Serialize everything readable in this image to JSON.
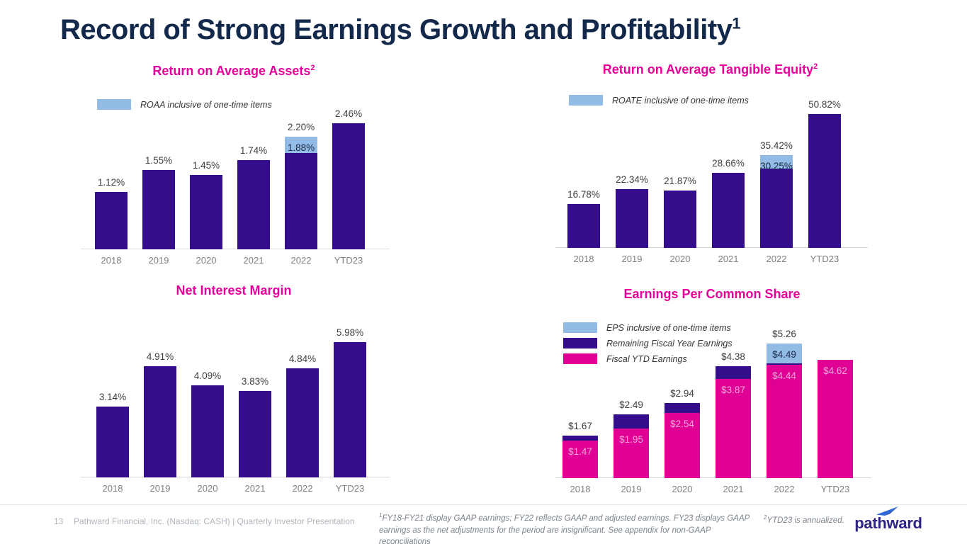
{
  "slide": {
    "title": "Record of Strong Earnings Growth and Profitability",
    "title_sup": "1"
  },
  "colors": {
    "navy": "#13294B",
    "title_magenta": "#E6009A",
    "bar_purple": "#330D8C",
    "bar_light_blue": "#92BBE5",
    "bar_magenta": "#E10096",
    "label_dark": "#3F3F3F",
    "label_navy": "#1C2B4A",
    "label_light_pink": "#F2A8D5",
    "axis_gray": "#D9D9D9",
    "tick_gray": "#7F7F7F",
    "footer_gray": "#AFB6BF",
    "footnote_gray": "#7A828C",
    "logo_indigo": "#2D2483",
    "logo_blue": "#2F6BD8"
  },
  "chart_data": [
    {
      "id": "roaa",
      "type": "bar",
      "title": "Return on Average Assets",
      "title_sup": "2",
      "unit": "%",
      "ylim": [
        0,
        2.56
      ],
      "grid": false,
      "legend_position": "top-left",
      "legend": [
        {
          "color": "#92BBE5",
          "label": "ROAA inclusive of one-time items"
        }
      ],
      "categories": [
        "2018",
        "2019",
        "2020",
        "2021",
        "2022",
        "YTD23"
      ],
      "series": [
        {
          "name": "ROAA",
          "color": "#330D8C",
          "values": [
            1.12,
            1.55,
            1.45,
            1.74,
            1.88,
            2.46
          ]
        },
        {
          "name": "One-time items uplift",
          "color": "#92BBE5",
          "values": [
            0,
            0,
            0,
            0,
            0.32,
            0
          ]
        }
      ],
      "labels": [
        {
          "bar": 0,
          "pos": "above",
          "text": "1.12%"
        },
        {
          "bar": 1,
          "pos": "above",
          "text": "1.55%"
        },
        {
          "bar": 2,
          "pos": "above",
          "text": "1.45%"
        },
        {
          "bar": 3,
          "pos": "above",
          "text": "1.74%"
        },
        {
          "bar": 4,
          "pos": "above",
          "text": "2.20%"
        },
        {
          "bar": 4,
          "pos": "inside",
          "seg": 1,
          "text": "1.88%",
          "color": "#1C2B4A"
        },
        {
          "bar": 5,
          "pos": "above",
          "text": "2.46%"
        }
      ]
    },
    {
      "id": "roate",
      "type": "bar",
      "title": "Return on Average Tangible Equity",
      "title_sup": "2",
      "unit": "%",
      "ylim": [
        0,
        51.2
      ],
      "grid": false,
      "legend_position": "top-left",
      "legend": [
        {
          "color": "#92BBE5",
          "label": "ROATE inclusive of one-time items"
        }
      ],
      "categories": [
        "2018",
        "2019",
        "2020",
        "2021",
        "2022",
        "YTD23"
      ],
      "series": [
        {
          "name": "ROATE",
          "color": "#330D8C",
          "values": [
            16.78,
            22.34,
            21.87,
            28.66,
            30.25,
            50.82
          ]
        },
        {
          "name": "One-time items uplift",
          "color": "#92BBE5",
          "values": [
            0,
            0,
            0,
            0,
            5.17,
            0
          ]
        }
      ],
      "labels": [
        {
          "bar": 0,
          "pos": "above",
          "text": "16.78%"
        },
        {
          "bar": 1,
          "pos": "above",
          "text": "22.34%"
        },
        {
          "bar": 2,
          "pos": "above",
          "text": "21.87%"
        },
        {
          "bar": 3,
          "pos": "above",
          "text": "28.66%"
        },
        {
          "bar": 4,
          "pos": "above",
          "text": "35.42%"
        },
        {
          "bar": 4,
          "pos": "inside",
          "seg": 1,
          "text": "30.25%",
          "color": "#1C2B4A"
        },
        {
          "bar": 5,
          "pos": "above",
          "text": "50.82%"
        }
      ]
    },
    {
      "id": "nim",
      "type": "bar",
      "title": "Net Interest Margin",
      "title_sup": "",
      "unit": "%",
      "ylim": [
        0,
        6.02
      ],
      "grid": false,
      "legend": [],
      "categories": [
        "2018",
        "2019",
        "2020",
        "2021",
        "2022",
        "YTD23"
      ],
      "series": [
        {
          "name": "Net Interest Margin",
          "color": "#330D8C",
          "values": [
            3.14,
            4.91,
            4.09,
            3.83,
            4.84,
            5.98
          ]
        }
      ],
      "labels": [
        {
          "bar": 0,
          "pos": "above",
          "text": "3.14%"
        },
        {
          "bar": 1,
          "pos": "above",
          "text": "4.91%"
        },
        {
          "bar": 2,
          "pos": "above",
          "text": "4.09%"
        },
        {
          "bar": 3,
          "pos": "above",
          "text": "3.83%"
        },
        {
          "bar": 4,
          "pos": "above",
          "text": "4.84%"
        },
        {
          "bar": 5,
          "pos": "above",
          "text": "5.98%"
        }
      ]
    },
    {
      "id": "eps",
      "type": "bar",
      "title": "Earnings Per Common Share",
      "title_sup": "",
      "unit": "$",
      "ylim": [
        0,
        5.32
      ],
      "grid": false,
      "legend_position": "top-left",
      "legend": [
        {
          "color": "#92BBE5",
          "label": "EPS inclusive of one-time items"
        },
        {
          "color": "#330D8C",
          "label": "Remaining Fiscal Year Earnings"
        },
        {
          "color": "#E10096",
          "label": "Fiscal YTD Earnings"
        }
      ],
      "categories": [
        "2018",
        "2019",
        "2020",
        "2021",
        "2022",
        "YTD23"
      ],
      "series": [
        {
          "name": "Fiscal YTD Earnings",
          "color": "#E10096",
          "values": [
            1.47,
            1.95,
            2.54,
            3.87,
            4.44,
            4.62
          ]
        },
        {
          "name": "Remaining Fiscal Year Earnings",
          "color": "#330D8C",
          "values": [
            0.2,
            0.54,
            0.4,
            0.51,
            0.05,
            0
          ]
        },
        {
          "name": "EPS inclusive of one-time items",
          "color": "#92BBE5",
          "values": [
            0,
            0,
            0,
            0,
            0.77,
            0
          ]
        }
      ],
      "labels": [
        {
          "bar": 0,
          "pos": "above",
          "text": "$1.67"
        },
        {
          "bar": 0,
          "pos": "inside",
          "seg": 0,
          "text": "$1.47",
          "color": "#F2A8D5"
        },
        {
          "bar": 1,
          "pos": "above",
          "text": "$2.49"
        },
        {
          "bar": 1,
          "pos": "inside",
          "seg": 0,
          "text": "$1.95",
          "color": "#F2A8D5"
        },
        {
          "bar": 2,
          "pos": "above",
          "text": "$2.94"
        },
        {
          "bar": 2,
          "pos": "inside",
          "seg": 0,
          "text": "$2.54",
          "color": "#F2A8D5"
        },
        {
          "bar": 3,
          "pos": "above",
          "text": "$4.38"
        },
        {
          "bar": 3,
          "pos": "inside",
          "seg": 0,
          "text": "$3.87",
          "color": "#F2A8D5"
        },
        {
          "bar": 4,
          "pos": "above",
          "text": "$5.26"
        },
        {
          "bar": 4,
          "pos": "inside",
          "seg": 2,
          "text": "$4.49",
          "color": "#1C2B4A"
        },
        {
          "bar": 4,
          "pos": "inside",
          "seg": 0,
          "text": "$4.44",
          "color": "#F2A8D5"
        },
        {
          "bar": 5,
          "pos": "inside",
          "seg": 0,
          "text": "$4.62",
          "color": "#F2A8D5"
        }
      ]
    }
  ],
  "footer": {
    "page_number": "13",
    "source": "Pathward Financial, Inc. (Nasdaq: CASH) | Quarterly Investor Presentation",
    "footnote1_sup": "1",
    "footnote1": "FY18-FY21 display GAAP earnings; FY22 reflects GAAP and adjusted earnings. FY23 displays GAAP earnings as the net adjustments for the period are insignificant. See appendix for non-GAAP reconciliations",
    "footnote2_sup": "2",
    "footnote2": "YTD23 is annualized.",
    "logo_text": "pathward"
  }
}
